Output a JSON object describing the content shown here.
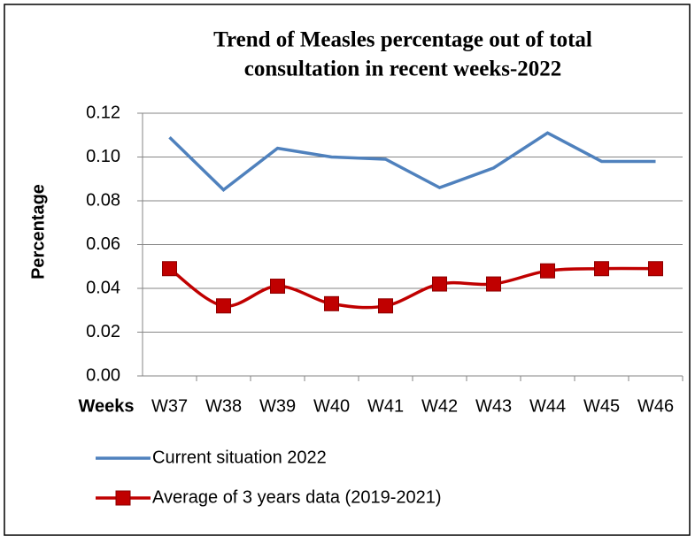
{
  "chart_data": {
    "type": "line",
    "title": [
      "Trend of Measles percentage out of total",
      "consultation in recent weeks-2022"
    ],
    "x_label": "Weeks",
    "y_label": "Percentage",
    "categories": [
      "W37",
      "W38",
      "W39",
      "W40",
      "W41",
      "W42",
      "W43",
      "W44",
      "W45",
      "W46"
    ],
    "series": [
      {
        "name": "Current situation 2022",
        "color": "#4f81bd",
        "smooth": false,
        "marker": false,
        "values": [
          0.109,
          0.085,
          0.104,
          0.1,
          0.099,
          0.086,
          0.095,
          0.111,
          0.098,
          0.098
        ]
      },
      {
        "name": "Average of 3 years data (2019-2021)",
        "color": "#c00000",
        "smooth": true,
        "marker": true,
        "values": [
          0.049,
          0.032,
          0.041,
          0.033,
          0.032,
          0.042,
          0.042,
          0.048,
          0.049,
          0.049
        ]
      }
    ],
    "ylim": [
      0,
      0.12
    ],
    "yticks": [
      {
        "value": 0,
        "label": "0.00"
      },
      {
        "value": 0.02,
        "label": "0.02"
      },
      {
        "value": 0.04,
        "label": "0.04"
      },
      {
        "value": 0.06,
        "label": "0.06"
      },
      {
        "value": 0.08,
        "label": "0.08"
      },
      {
        "value": 0.1,
        "label": "0.10"
      },
      {
        "value": 0.12,
        "label": "0.12"
      }
    ],
    "grid": true,
    "legend": "bottom"
  }
}
